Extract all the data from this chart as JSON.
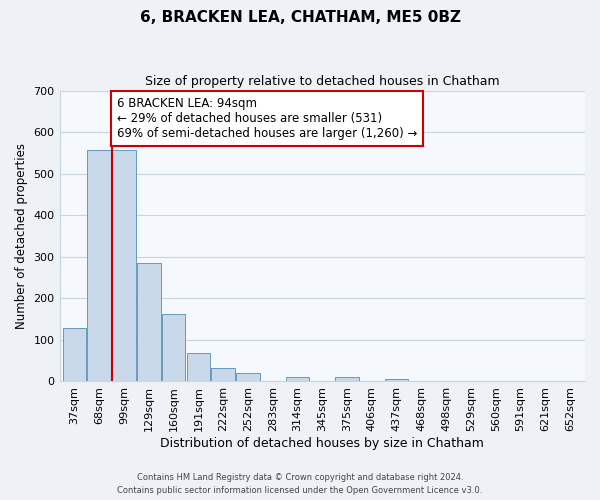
{
  "title": "6, BRACKEN LEA, CHATHAM, ME5 0BZ",
  "subtitle": "Size of property relative to detached houses in Chatham",
  "xlabel": "Distribution of detached houses by size in Chatham",
  "ylabel": "Number of detached properties",
  "bin_labels": [
    "37sqm",
    "68sqm",
    "99sqm",
    "129sqm",
    "160sqm",
    "191sqm",
    "222sqm",
    "252sqm",
    "283sqm",
    "314sqm",
    "345sqm",
    "375sqm",
    "406sqm",
    "437sqm",
    "468sqm",
    "498sqm",
    "529sqm",
    "560sqm",
    "591sqm",
    "621sqm",
    "652sqm"
  ],
  "bar_heights": [
    128,
    557,
    557,
    285,
    163,
    68,
    33,
    20,
    0,
    10,
    0,
    10,
    0,
    5,
    0,
    0,
    0,
    0,
    0,
    0,
    0
  ],
  "bar_color": "#c9d9ea",
  "bar_edge_color": "#6699bb",
  "vline_color": "#cc0000",
  "ylim": [
    0,
    700
  ],
  "yticks": [
    0,
    100,
    200,
    300,
    400,
    500,
    600,
    700
  ],
  "annotation_title": "6 BRACKEN LEA: 94sqm",
  "annotation_line1": "← 29% of detached houses are smaller (531)",
  "annotation_line2": "69% of semi-detached houses are larger (1,260) →",
  "annotation_box_color": "#ffffff",
  "annotation_box_edge_color": "#cc0000",
  "footer1": "Contains HM Land Registry data © Crown copyright and database right 2024.",
  "footer2": "Contains public sector information licensed under the Open Government Licence v3.0.",
  "bg_color": "#eef2f7",
  "plot_bg_color": "#f5f8fc",
  "grid_color": "#c8d4e0"
}
